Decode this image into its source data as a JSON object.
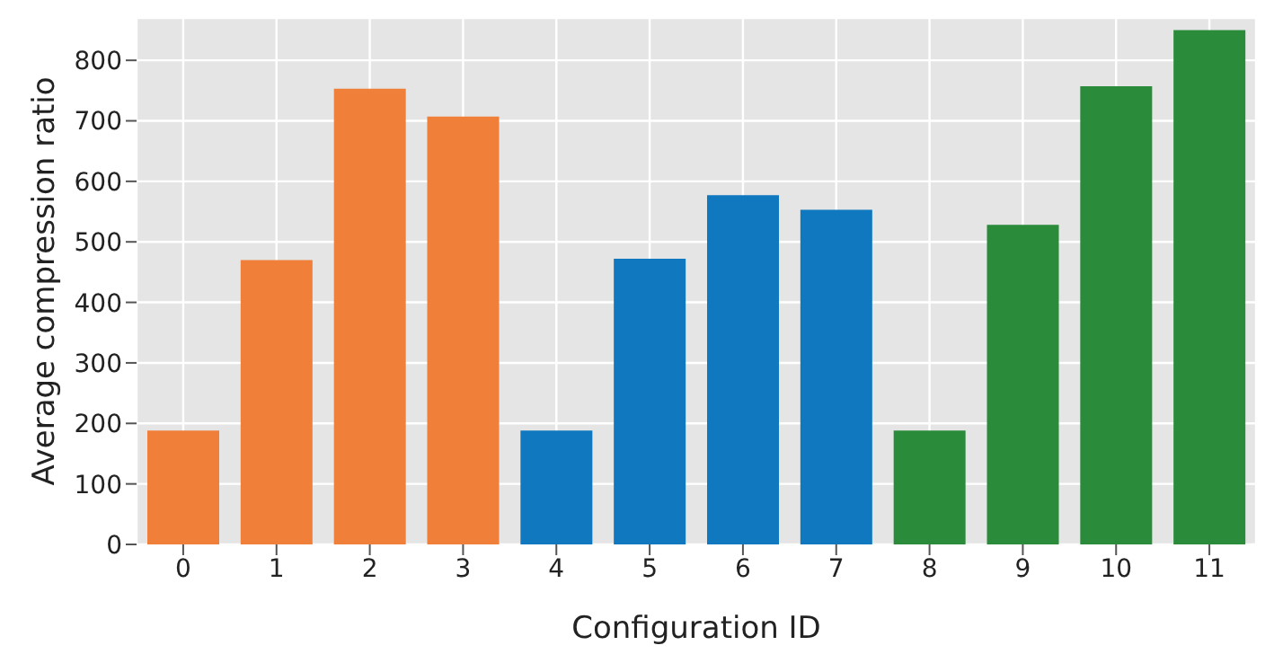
{
  "chart_data": {
    "type": "bar",
    "xlabel": "Configuration ID",
    "ylabel": "Average compression ratio",
    "categories": [
      "0",
      "1",
      "2",
      "3",
      "4",
      "5",
      "6",
      "7",
      "8",
      "9",
      "10",
      "11"
    ],
    "values": [
      188,
      470,
      753,
      707,
      188,
      472,
      577,
      553,
      188,
      528,
      757,
      850
    ],
    "colors": [
      "#f07f3a",
      "#f07f3a",
      "#f07f3a",
      "#f07f3a",
      "#0f78bf",
      "#0f78bf",
      "#0f78bf",
      "#0f78bf",
      "#2a8b3b",
      "#2a8b3b",
      "#2a8b3b",
      "#2a8b3b"
    ],
    "ylim": [
      0,
      870
    ],
    "yticks": [
      0,
      100,
      200,
      300,
      400,
      500,
      600,
      700,
      800
    ],
    "grid": true
  }
}
